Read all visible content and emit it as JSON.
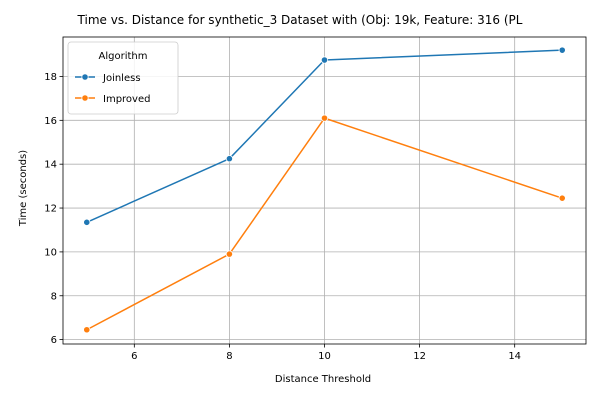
{
  "chart_data": {
    "type": "line",
    "title": "Time vs. Distance for synthetic_3 Dataset with (Obj: 19k, Feature: 316 (PL",
    "xlabel": "Distance Threshold",
    "ylabel": "Time (seconds)",
    "xlim": [
      4.5,
      15.5
    ],
    "ylim": [
      5.8,
      19.8
    ],
    "xticks": [
      6,
      8,
      10,
      12,
      14
    ],
    "yticks": [
      6,
      8,
      10,
      12,
      14,
      16,
      18
    ],
    "grid": true,
    "legend": {
      "title": "Algorithm",
      "placement": "top-left"
    },
    "x": [
      5,
      8,
      10,
      15
    ],
    "series": [
      {
        "name": "Joinless",
        "color": "#1f77b4",
        "values": [
          11.35,
          14.25,
          18.75,
          19.2
        ]
      },
      {
        "name": "Improved",
        "color": "#ff7f0e",
        "values": [
          6.45,
          9.9,
          16.1,
          12.45
        ]
      }
    ]
  }
}
